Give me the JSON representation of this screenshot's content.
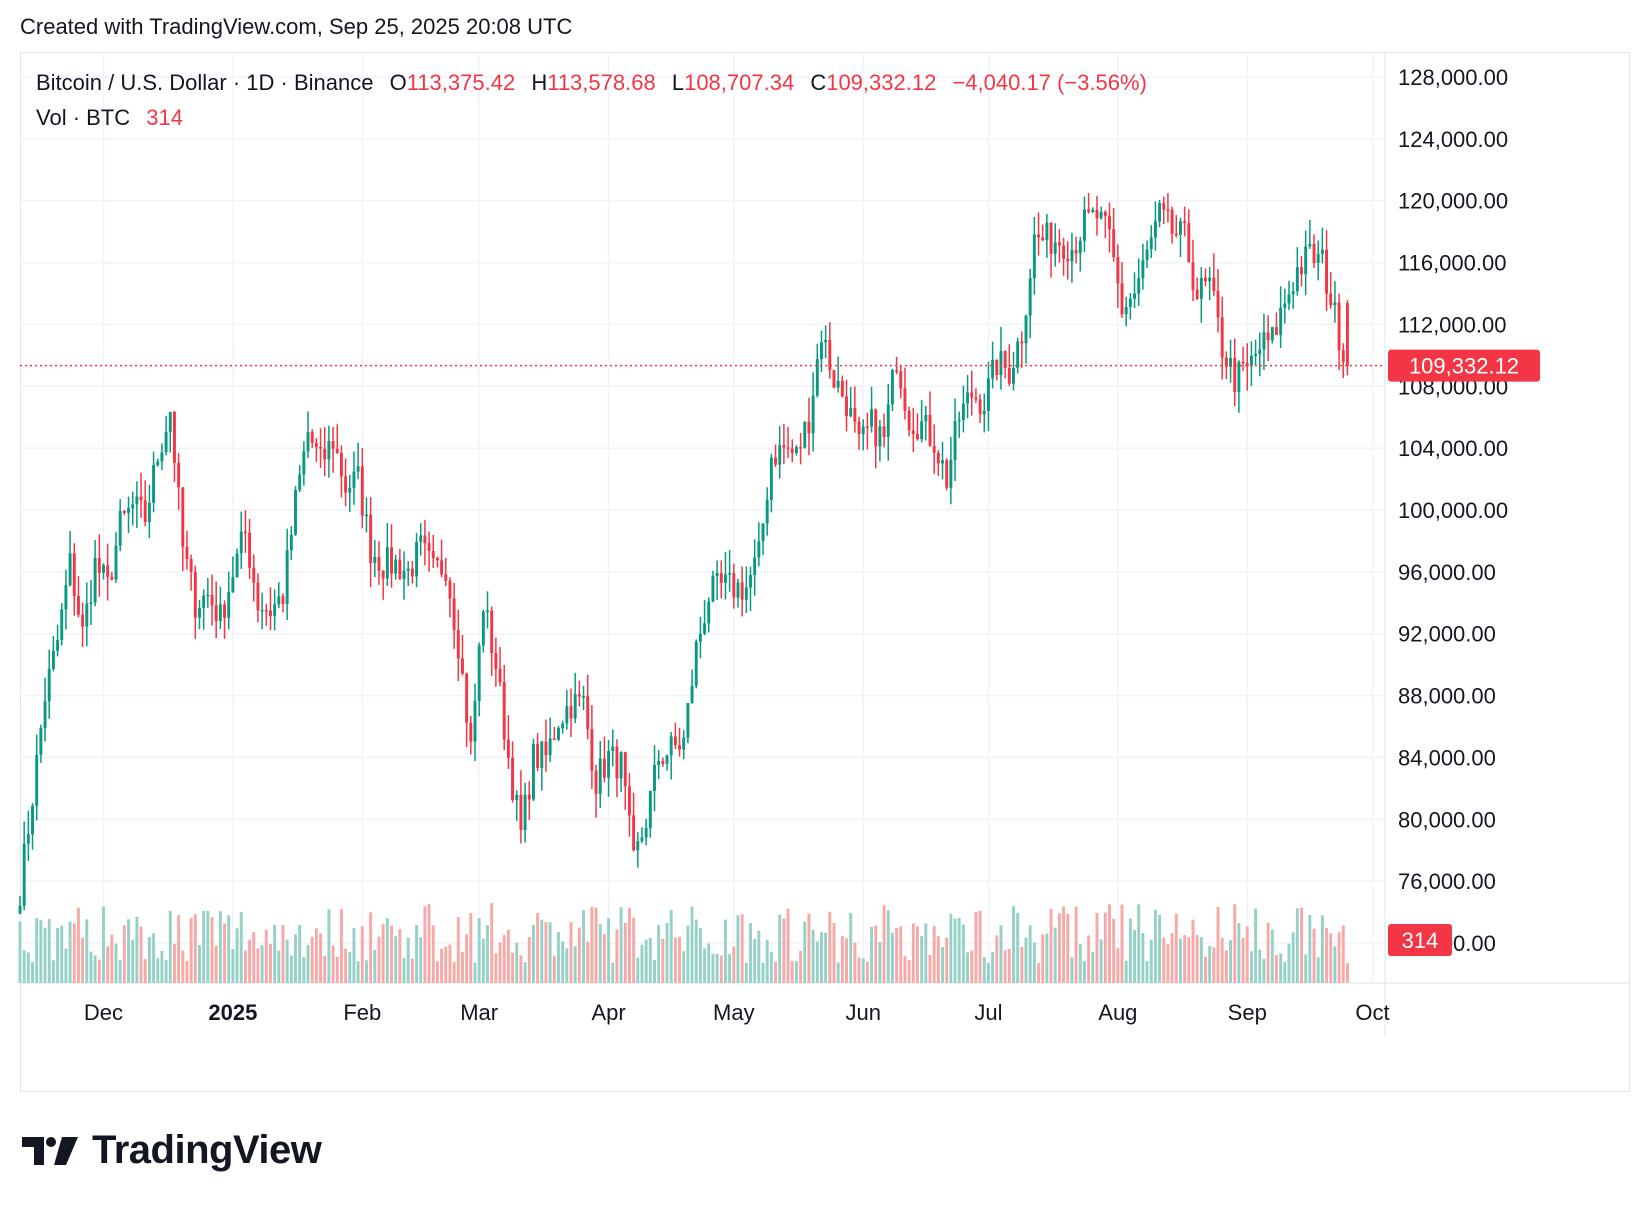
{
  "header": {
    "created": "Created with TradingView.com, Sep 25, 2025 20:08 UTC"
  },
  "legend": {
    "symbol": "Bitcoin / U.S. Dollar · 1D · Binance",
    "o_label": "O",
    "o_value": "113,375.42",
    "h_label": "H",
    "h_value": "113,578.68",
    "l_label": "L",
    "l_value": "108,707.34",
    "c_label": "C",
    "c_value": "109,332.12",
    "change": "−4,040.17 (−3.56%)",
    "vol_label": "Vol · BTC",
    "vol_value": "314"
  },
  "price_axis": {
    "ticks": [
      "128,000.00",
      "124,000.00",
      "120,000.00",
      "116,000.00",
      "112,000.00",
      "108,000.00",
      "104,000.00",
      "100,000.00",
      "96,000.00",
      "92,000.00",
      "88,000.00",
      "84,000.00",
      "80,000.00",
      "76,000.00",
      "72,000.00"
    ]
  },
  "time_axis": {
    "labels": [
      "Dec",
      "2025",
      "Feb",
      "Mar",
      "Apr",
      "May",
      "Jun",
      "Jul",
      "Aug",
      "Sep",
      "Oct"
    ],
    "bold": [
      "2025"
    ]
  },
  "last_price": {
    "label": "109,332.12",
    "value": 109332.12
  },
  "last_volume": {
    "label": "314"
  },
  "logo": {
    "text": "TradingView"
  },
  "colors": {
    "up": "#089981",
    "down": "#f23645",
    "vol_up": "#95d1c7",
    "vol_down": "#f7a9a7",
    "grid": "#f0f3fa"
  },
  "chart_data": {
    "type": "candlestick",
    "title": "Bitcoin / U.S. Dollar · 1D · Binance",
    "y_range": [
      70000,
      130000
    ],
    "x_range": [
      "2024-11-11",
      "2025-10-04"
    ],
    "grid": true,
    "series": [
      {
        "date": "2024-11-11",
        "close": 75500
      },
      {
        "date": "2024-11-14",
        "close": 81500
      },
      {
        "date": "2024-11-17",
        "close": 88000
      },
      {
        "date": "2024-11-20",
        "close": 91500
      },
      {
        "date": "2024-11-23",
        "close": 96500
      },
      {
        "date": "2024-11-26",
        "close": 92000
      },
      {
        "date": "2024-11-29",
        "close": 96500
      },
      {
        "date": "2024-12-02",
        "close": 95000
      },
      {
        "date": "2024-12-05",
        "close": 99000
      },
      {
        "date": "2024-12-08",
        "close": 100200
      },
      {
        "date": "2024-12-11",
        "close": 99500
      },
      {
        "date": "2024-12-14",
        "close": 103500
      },
      {
        "date": "2024-12-17",
        "close": 106500
      },
      {
        "date": "2024-12-20",
        "close": 97500
      },
      {
        "date": "2024-12-23",
        "close": 94000
      },
      {
        "date": "2024-12-26",
        "close": 94500
      },
      {
        "date": "2024-12-29",
        "close": 93000
      },
      {
        "date": "2025-01-01",
        "close": 96000
      },
      {
        "date": "2025-01-04",
        "close": 98500
      },
      {
        "date": "2025-01-07",
        "close": 94000
      },
      {
        "date": "2025-01-10",
        "close": 93500
      },
      {
        "date": "2025-01-13",
        "close": 94500
      },
      {
        "date": "2025-01-16",
        "close": 100500
      },
      {
        "date": "2025-01-19",
        "close": 105000
      },
      {
        "date": "2025-01-22",
        "close": 103000
      },
      {
        "date": "2025-01-25",
        "close": 104500
      },
      {
        "date": "2025-01-28",
        "close": 101500
      },
      {
        "date": "2025-01-31",
        "close": 102000
      },
      {
        "date": "2025-02-03",
        "close": 97500
      },
      {
        "date": "2025-02-06",
        "close": 96500
      },
      {
        "date": "2025-02-09",
        "close": 96500
      },
      {
        "date": "2025-02-12",
        "close": 96000
      },
      {
        "date": "2025-02-15",
        "close": 97500
      },
      {
        "date": "2025-02-18",
        "close": 96000
      },
      {
        "date": "2025-02-21",
        "close": 96500
      },
      {
        "date": "2025-02-24",
        "close": 91500
      },
      {
        "date": "2025-02-27",
        "close": 84500
      },
      {
        "date": "2025-03-02",
        "close": 94000
      },
      {
        "date": "2025-03-05",
        "close": 90000
      },
      {
        "date": "2025-03-08",
        "close": 84000
      },
      {
        "date": "2025-03-11",
        "close": 79000
      },
      {
        "date": "2025-03-14",
        "close": 84000
      },
      {
        "date": "2025-03-17",
        "close": 84000
      },
      {
        "date": "2025-03-20",
        "close": 86500
      },
      {
        "date": "2025-03-23",
        "close": 87500
      },
      {
        "date": "2025-03-26",
        "close": 87500
      },
      {
        "date": "2025-03-29",
        "close": 82500
      },
      {
        "date": "2025-04-01",
        "close": 84000
      },
      {
        "date": "2025-04-04",
        "close": 83500
      },
      {
        "date": "2025-04-07",
        "close": 77000
      },
      {
        "date": "2025-04-10",
        "close": 80000
      },
      {
        "date": "2025-04-13",
        "close": 84000
      },
      {
        "date": "2025-04-16",
        "close": 84500
      },
      {
        "date": "2025-04-19",
        "close": 85000
      },
      {
        "date": "2025-04-22",
        "close": 91000
      },
      {
        "date": "2025-04-25",
        "close": 94500
      },
      {
        "date": "2025-04-28",
        "close": 95000
      },
      {
        "date": "2025-05-01",
        "close": 95000
      },
      {
        "date": "2025-05-04",
        "close": 95000
      },
      {
        "date": "2025-05-07",
        "close": 97000
      },
      {
        "date": "2025-05-10",
        "close": 103500
      },
      {
        "date": "2025-05-13",
        "close": 104000
      },
      {
        "date": "2025-05-16",
        "close": 103500
      },
      {
        "date": "2025-05-19",
        "close": 106000
      },
      {
        "date": "2025-05-22",
        "close": 111500
      },
      {
        "date": "2025-05-25",
        "close": 108500
      },
      {
        "date": "2025-05-28",
        "close": 107000
      },
      {
        "date": "2025-05-31",
        "close": 104000
      },
      {
        "date": "2025-06-03",
        "close": 105500
      },
      {
        "date": "2025-06-06",
        "close": 104500
      },
      {
        "date": "2025-06-09",
        "close": 110000
      },
      {
        "date": "2025-06-12",
        "close": 106000
      },
      {
        "date": "2025-06-15",
        "close": 105500
      },
      {
        "date": "2025-06-18",
        "close": 104500
      },
      {
        "date": "2025-06-21",
        "close": 102000
      },
      {
        "date": "2025-06-24",
        "close": 106000
      },
      {
        "date": "2025-06-27",
        "close": 107500
      },
      {
        "date": "2025-06-30",
        "close": 107000
      },
      {
        "date": "2025-07-03",
        "close": 109500
      },
      {
        "date": "2025-07-06",
        "close": 109000
      },
      {
        "date": "2025-07-09",
        "close": 111500
      },
      {
        "date": "2025-07-12",
        "close": 117500
      },
      {
        "date": "2025-07-15",
        "close": 117500
      },
      {
        "date": "2025-07-18",
        "close": 117500
      },
      {
        "date": "2025-07-21",
        "close": 117000
      },
      {
        "date": "2025-07-24",
        "close": 118500
      },
      {
        "date": "2025-07-27",
        "close": 119000
      },
      {
        "date": "2025-07-30",
        "close": 117500
      },
      {
        "date": "2025-08-02",
        "close": 113000
      },
      {
        "date": "2025-08-05",
        "close": 114000
      },
      {
        "date": "2025-08-08",
        "close": 116500
      },
      {
        "date": "2025-08-11",
        "close": 119000
      },
      {
        "date": "2025-08-14",
        "close": 118000
      },
      {
        "date": "2025-08-17",
        "close": 117500
      },
      {
        "date": "2025-08-20",
        "close": 114000
      },
      {
        "date": "2025-08-23",
        "close": 114500
      },
      {
        "date": "2025-08-26",
        "close": 110500
      },
      {
        "date": "2025-08-29",
        "close": 108500
      },
      {
        "date": "2025-09-01",
        "close": 109000
      },
      {
        "date": "2025-09-04",
        "close": 110500
      },
      {
        "date": "2025-09-07",
        "close": 111000
      },
      {
        "date": "2025-09-10",
        "close": 113500
      },
      {
        "date": "2025-09-13",
        "close": 115500
      },
      {
        "date": "2025-09-16",
        "close": 116500
      },
      {
        "date": "2025-09-19",
        "close": 116000
      },
      {
        "date": "2025-09-22",
        "close": 112500
      },
      {
        "date": "2025-09-25",
        "open": 113375.42,
        "high": 113578.68,
        "low": 108707.34,
        "close": 109332.12
      }
    ]
  }
}
